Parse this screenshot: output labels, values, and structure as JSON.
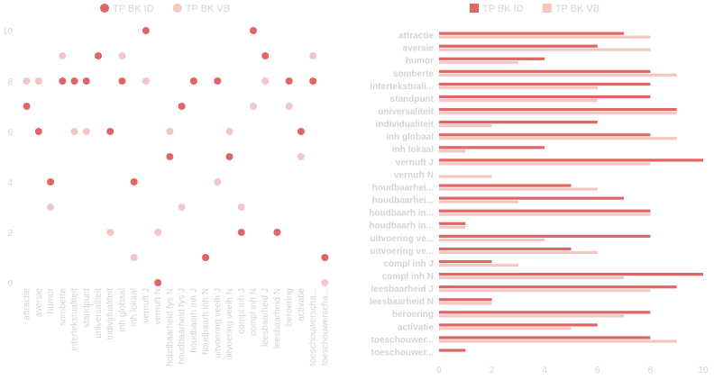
{
  "chart_data": [
    {
      "type": "scatter",
      "categories": [
        "attractie",
        "aversie",
        "humor",
        "somberte",
        "intertekstualiteit",
        "standpunt",
        "universaliteit",
        "individualiteit",
        "inh globaal",
        "inh lokaal",
        "vernuft J",
        "vernuft N",
        "houdbaarheid fys N",
        "houdbaarheid fys J",
        "houdbaarh inh J",
        "houdbaarh inh N",
        "uitvoering veelh J",
        "uitvoering veelh N",
        "compl inh J",
        "compl inh N",
        "leesbaarheid J",
        "leesbaarheid N",
        "beroering",
        "activatie",
        "toeschouwerschap J",
        "toeschouwerschap N"
      ],
      "categories_display": [
        "attractie",
        "aversie",
        "humor",
        "somberte",
        "intertekstualiteit",
        "standpunt",
        "universaliteit",
        "individualiteit",
        "inh globaal",
        "inh lokaal",
        "vernuft J",
        "vernuft N",
        "houdbaarheid fys N",
        "houdbaarheid fys J",
        "houdbaarh inh J",
        "houdbaarh inh N",
        "uitvoering veelh J",
        "uitvoering veelh N",
        "compl inh J",
        "compl inh N",
        "leesbaarheid J",
        "leesbaarheid N",
        "beroering",
        "activatie",
        "toeschouwerscha...",
        "toeschouwerscha..."
      ],
      "series": [
        {
          "name": "TP BK ID",
          "color": "#e06666",
          "values": [
            7,
            6,
            4,
            8,
            8,
            8,
            9,
            6,
            8,
            4,
            10,
            0,
            5,
            7,
            8,
            1,
            8,
            5,
            2,
            10,
            9,
            2,
            8,
            6,
            8,
            1
          ]
        },
        {
          "name": "TP BK VB",
          "color": "#f4c7c3",
          "values": [
            8,
            8,
            3,
            9,
            6,
            6,
            9,
            2,
            9,
            1,
            8,
            2,
            6,
            3,
            8,
            1,
            4,
            6,
            3,
            7,
            8,
            2,
            7,
            5,
            9,
            0
          ]
        }
      ],
      "ylim": [
        0,
        10
      ],
      "yticks": [
        0,
        2,
        4,
        6,
        8,
        10
      ],
      "legend": "top"
    },
    {
      "type": "bar",
      "orientation": "horizontal",
      "categories": [
        "attractie",
        "aversie",
        "humor",
        "somberte",
        "intertekstuali...",
        "standpunt",
        "universaliteit",
        "individualiteit",
        "inh globaal",
        "inh lokaal",
        "vernuft J",
        "vernuft N",
        "houdbaarhei...",
        "houdbaarhei...",
        "houdbaarh in...",
        "houdbaarh in...",
        "uitvoering ve...",
        "uitvoering ve...",
        "compl inh J",
        "compl inh N",
        "leesbaarheid J",
        "leesbaarheid N",
        "beroering",
        "activatie",
        "toeschouwer...",
        "toeschouwer..."
      ],
      "series": [
        {
          "name": "TP BK ID",
          "color": "#e06666",
          "values": [
            7,
            6,
            4,
            8,
            8,
            8,
            9,
            6,
            8,
            4,
            10,
            0,
            5,
            7,
            8,
            1,
            8,
            5,
            2,
            10,
            9,
            2,
            8,
            6,
            8,
            1
          ]
        },
        {
          "name": "TP BK VB",
          "color": "#f4c7c3",
          "values": [
            8,
            8,
            3,
            9,
            6,
            6,
            9,
            2,
            9,
            1,
            8,
            2,
            6,
            3,
            8,
            1,
            4,
            6,
            3,
            7,
            8,
            2,
            7,
            5,
            9,
            0
          ]
        }
      ],
      "xlim": [
        0,
        10
      ],
      "xticks": [
        0,
        2,
        4,
        6,
        8,
        10
      ],
      "legend": "top"
    }
  ]
}
